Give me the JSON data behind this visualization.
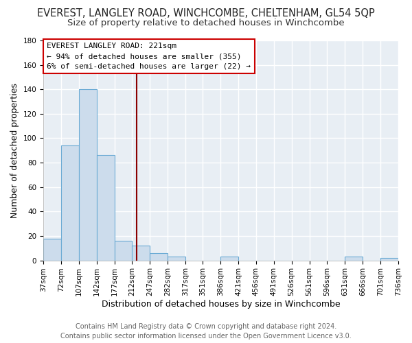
{
  "title": "EVEREST, LANGLEY ROAD, WINCHCOMBE, CHELTENHAM, GL54 5QP",
  "subtitle": "Size of property relative to detached houses in Winchcombe",
  "xlabel": "Distribution of detached houses by size in Winchcombe",
  "ylabel": "Number of detached properties",
  "bin_edges": [
    37,
    72,
    107,
    142,
    177,
    212,
    247,
    282,
    317,
    351,
    386,
    421,
    456,
    491,
    526,
    561,
    596,
    631,
    666,
    701,
    736
  ],
  "bar_heights": [
    18,
    94,
    140,
    86,
    16,
    12,
    6,
    3,
    0,
    0,
    3,
    0,
    0,
    0,
    0,
    0,
    0,
    3,
    0,
    2
  ],
  "bar_color": "#ccdcec",
  "bar_edge_color": "#6aaad4",
  "vline_x": 221,
  "vline_color": "#8b0000",
  "ylim": [
    0,
    180
  ],
  "yticks": [
    0,
    20,
    40,
    60,
    80,
    100,
    120,
    140,
    160,
    180
  ],
  "annotation_title": "EVEREST LANGLEY ROAD: 221sqm",
  "annotation_line1": "← 94% of detached houses are smaller (355)",
  "annotation_line2": "6% of semi-detached houses are larger (22) →",
  "annotation_box_color": "#ffffff",
  "annotation_box_edge_color": "#cc0000",
  "footer_line1": "Contains HM Land Registry data © Crown copyright and database right 2024.",
  "footer_line2": "Contains public sector information licensed under the Open Government Licence v3.0.",
  "background_color": "#ffffff",
  "plot_bg_color": "#e8eef4",
  "grid_color": "#ffffff",
  "title_fontsize": 10.5,
  "subtitle_fontsize": 9.5,
  "axis_label_fontsize": 9,
  "tick_fontsize": 7.5,
  "annotation_fontsize": 8,
  "footer_fontsize": 7
}
